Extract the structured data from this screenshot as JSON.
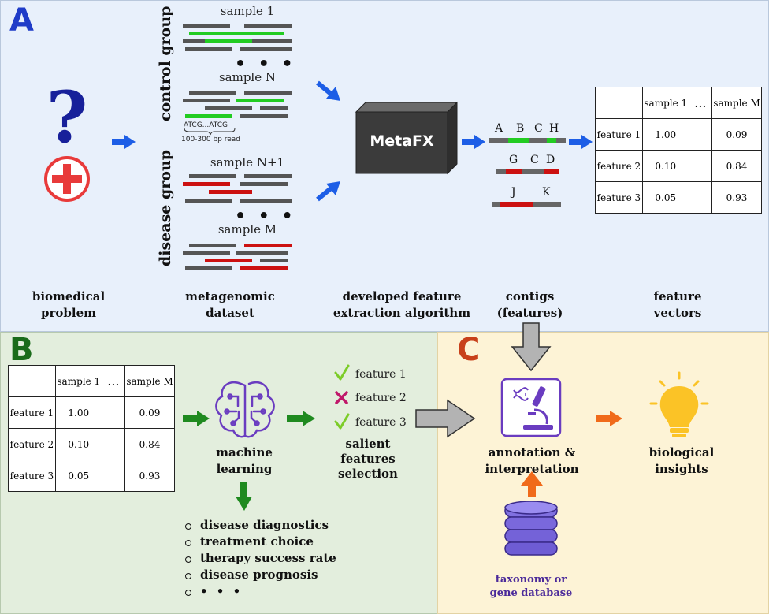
{
  "panels": {
    "a": {
      "letter": "A",
      "labels": {
        "problem": "biomedical\nproblem",
        "dataset": "metagenomic\ndataset",
        "algorithm": "developed feature\nextraction algorithm",
        "contigs": "contigs\n(features)",
        "vectors": "feature\nvectors"
      },
      "groups": {
        "control": "control group",
        "disease": "disease group"
      },
      "samples": [
        "sample 1",
        "sample N",
        "sample N+1",
        "sample M"
      ],
      "read_seq": "ATCG...ATCG",
      "read_len": "100-300 bp read",
      "ellipsis": "• • •",
      "box_label": "MetaFX",
      "contig_letters": {
        "row1": [
          "A",
          "B",
          "C",
          "H"
        ],
        "row2": [
          "G",
          "C",
          "D"
        ],
        "row3": [
          "J",
          "K"
        ]
      }
    },
    "b": {
      "letter": "B",
      "ml_label": "machine\nlearning",
      "selection_label": "salient\nfeatures\nselection",
      "features": [
        {
          "label": "feature 1",
          "status": "selected"
        },
        {
          "label": "feature 2",
          "status": "rejected"
        },
        {
          "label": "feature 3",
          "status": "selected"
        }
      ],
      "applications": [
        "disease diagnostics",
        "treatment choice",
        "therapy success rate",
        "disease prognosis",
        "• • •"
      ]
    },
    "c": {
      "letter": "C",
      "annotation_label": "annotation &\ninterpretation",
      "insights_label": "biological\ninsights",
      "db_label": "taxonomy or\ngene database"
    }
  },
  "table": {
    "columns": [
      "",
      "sample 1",
      "...",
      "sample M"
    ],
    "rows": [
      {
        "name": "feature 1",
        "v1": "1.00",
        "vdots": "",
        "vm": "0.09"
      },
      {
        "name": "feature 2",
        "v1": "0.10",
        "vdots": "",
        "vm": "0.84"
      },
      {
        "name": "feature 3",
        "v1": "0.05",
        "vdots": "",
        "vm": "0.93"
      }
    ]
  },
  "colors": {
    "letter_a": "#1f3cc8",
    "letter_b": "#1a6b1a",
    "letter_c": "#c8401a",
    "read_gray": "#555555",
    "read_green": "#22cc22",
    "read_red": "#cc1111",
    "arrow_blue": "#1d5ee6",
    "arrow_green": "#1f8a1f",
    "arrow_orange": "#f06a1a",
    "icon_purple": "#6a3cc0"
  }
}
